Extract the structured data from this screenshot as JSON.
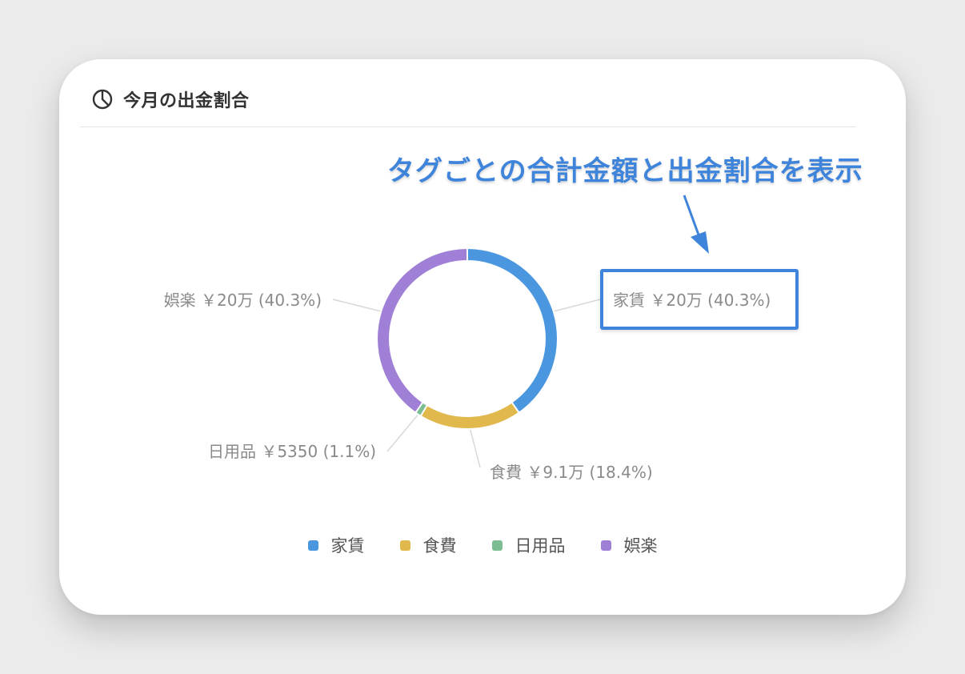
{
  "card": {
    "title": "今月の出金割合",
    "icon": "pie-chart-icon"
  },
  "annotation": {
    "text": "タグごとの合計金額と出金割合を表示",
    "color": "#3f84db"
  },
  "chart_data": {
    "type": "pie",
    "variant": "donut",
    "categories": [
      "家賃",
      "食費",
      "日用品",
      "娯楽"
    ],
    "values": [
      200000,
      91000,
      5350,
      200000
    ],
    "percentages": [
      40.3,
      18.4,
      1.1,
      40.3
    ],
    "colors": [
      "#4a97e0",
      "#e0b84c",
      "#7cbd91",
      "#a07fd6"
    ],
    "labels": [
      "家賃 ￥20万 (40.3%)",
      "食費 ￥9.1万 (18.4%)",
      "日用品 ￥5350 (1.1%)",
      "娯楽 ￥20万 (40.3%)"
    ],
    "legend": {
      "position": "bottom",
      "entries": [
        "家賃",
        "食費",
        "日用品",
        "娯楽"
      ]
    },
    "title": "今月の出金割合"
  }
}
